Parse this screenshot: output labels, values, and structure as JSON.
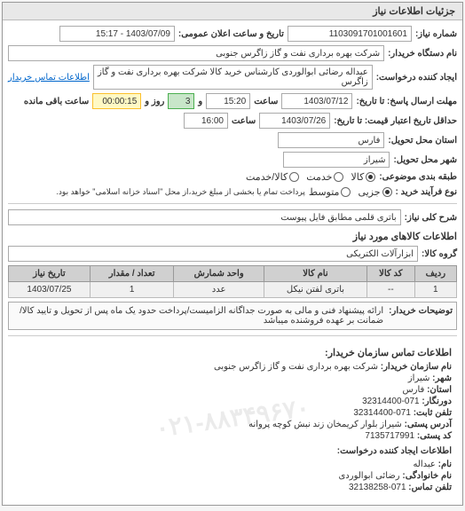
{
  "panel_title": "جزئیات اطلاعات نیاز",
  "header": {
    "req_no_label": "شماره نیاز:",
    "req_no": "1103091701001601",
    "public_datetime_label": "تاریخ و ساعت اعلان عمومی:",
    "public_datetime": "1403/07/09 - 15:17",
    "buyer_label": "نام دستگاه خریدار:",
    "buyer": "شرکت بهره برداری نفت و گاز زاگرس جنوبی",
    "creator_label": "ایجاد کننده درخواست:",
    "creator": "عبداله رضائی ابوالوردی کارشناس خرید کالا شرکت بهره برداری نفت و گاز زاگرس",
    "contact_link": "اطلاعات تماس خریدار",
    "deadline_label": "مهلت ارسال پاسخ: تا تاریخ:",
    "deadline_date": "1403/07/12",
    "time_label": "ساعت",
    "deadline_time": "15:20",
    "and_label": "و",
    "days_field": "3",
    "days_label": "روز و",
    "remaining_time": "00:00:15",
    "remaining_label": "ساعت باقی مانده",
    "validity_label": "حداقل تاریخ اعتبار قیمت: تا تاریخ:",
    "validity_date": "1403/07/26",
    "validity_time": "16:00",
    "province_label": "استان محل تحویل:",
    "province": "فارس",
    "city_label": "شهر محل تحویل:",
    "city": "شیراز",
    "package_label": "طبقه بندی موضوعی:",
    "package_options": [
      {
        "label": "کالا",
        "checked": true
      },
      {
        "label": "خدمت",
        "checked": false
      },
      {
        "label": "کالا/خدمت",
        "checked": false
      }
    ],
    "process_label": "نوع فرآیند خرید :",
    "process_options": [
      {
        "label": "جزیی",
        "checked": true
      },
      {
        "label": "متوسط",
        "checked": false
      }
    ],
    "process_note": "پرداخت تمام یا بخشی از مبلغ خرید،از محل \"اسناد خزانه اسلامی\" خواهد بود."
  },
  "summary": {
    "label": "شرح کلی نیاز:",
    "text": "باتری قلمی مطابق فایل پیوست"
  },
  "items": {
    "section_title": "اطلاعات کالاهای مورد نیاز",
    "group_label": "گروه کالا:",
    "group": "ابزارآلات الکتریکی",
    "columns": [
      "ردیف",
      "کد کالا",
      "نام کالا",
      "واحد شمارش",
      "تعداد / مقدار",
      "تاریخ نیاز"
    ],
    "rows": [
      [
        "1",
        "--",
        "باتری لفتن نیکل",
        "عدد",
        "1",
        "1403/07/25"
      ]
    ]
  },
  "notes": {
    "label": "توضیحات خریدار:",
    "text": "ارائه پیشنهاد فنی و مالی به صورت جداگانه الزامیست/پرداخت حدود یک ماه پس از تحویل و تایید کالا/ ضمانت بر عهده فروشنده میباشد"
  },
  "contact": {
    "section_title": "اطلاعات تماس سازمان خریدار:",
    "org_label": "نام سازمان خریدار:",
    "org": "شرکت بهره برداری نفت و گاز زاگرس جنوبی",
    "city_label": "شهر:",
    "city": "شیراز",
    "province_label": "استان:",
    "province": "فارس",
    "fax_label": "دورنگار:",
    "fax": "071-32314400",
    "phone_label": "تلفن ثابت:",
    "phone": "071-32314400",
    "address_label": "آدرس پستی:",
    "address": "شیراز بلوار کریمخان زند نبش کوچه پروانه",
    "postal_label": "کد پستی:",
    "postal": "7135717991",
    "creator_section": "اطلاعات ایجاد کننده درخواست:",
    "name_label": "نام:",
    "name": "عبداله",
    "lastname_label": "نام خانوادگی:",
    "lastname": "رضائی ابوالوردی",
    "creator_phone_label": "تلفن تماس:",
    "creator_phone": "071-32138258",
    "watermark": "۰۲۱-۸۸۳۴۹۶۷۰"
  },
  "colors": {
    "panel_border": "#999999",
    "header_bg": "#e8e8e8",
    "field_border": "#aaaaaa",
    "green_bg": "#c8e6c9",
    "yellow_bg": "#fff9c4",
    "th_bg": "#d0d0d0",
    "td_bg": "#f0f0f0",
    "link": "#0066cc"
  }
}
